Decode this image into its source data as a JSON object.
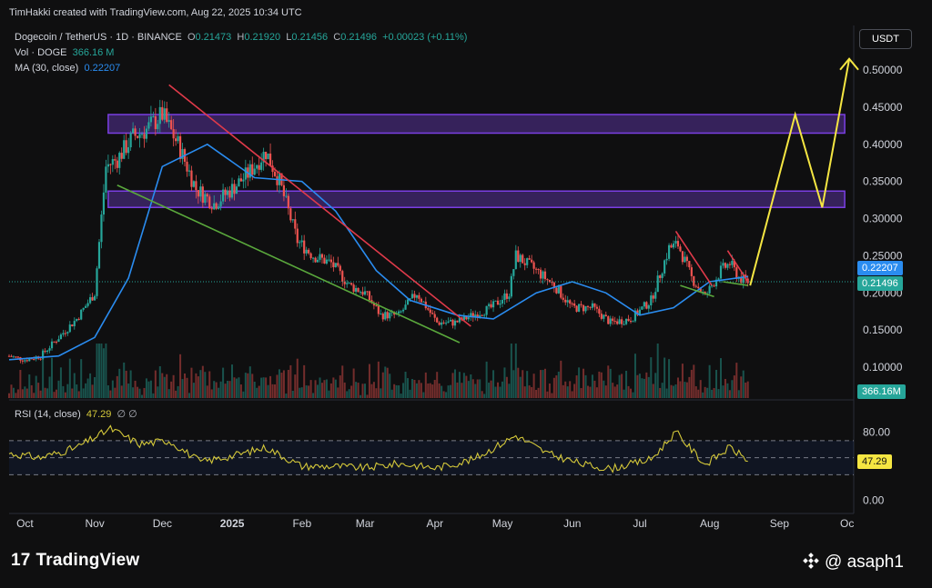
{
  "credit": "TimHakki created with TradingView.com, Aug 22, 2025 10:34 UTC",
  "symbol": {
    "name": "Dogecoin / TetherUS · 1D · BINANCE",
    "o_label": "O",
    "o": "0.21473",
    "h_label": "H",
    "h": "0.21920",
    "l_label": "L",
    "l": "0.21456",
    "c_label": "C",
    "c": "0.21496",
    "change": "+0.00023 (+0.11%)"
  },
  "vol": {
    "label": "Vol · DOGE",
    "value": "366.16 M"
  },
  "ma": {
    "label": "MA (30, close)",
    "value": "0.22207"
  },
  "currency": "USDT",
  "badges": {
    "ma": "0.22207",
    "price": "0.21496",
    "volume": "366.16M",
    "rsi": "47.29"
  },
  "rsi_header": {
    "label": "RSI (14, close)",
    "value": "47.29",
    "icons": "∅  ∅"
  },
  "footer": {
    "brand": "TradingView",
    "watermark": "@ asaph1"
  },
  "colors": {
    "background": "#0f0f10",
    "up": "#26a69a",
    "down": "#ef5350",
    "ma": "#2a8cf0",
    "zone": "#7b3fe4",
    "rsi": "#d4c83a",
    "projection": "#f5e642",
    "falling_resistance": "#e03a4a",
    "falling_support": "#5aa83c"
  },
  "chart_data": [
    {
      "type": "candlestick",
      "title": "Dogecoin / TetherUS · 1D · BINANCE",
      "x_ticks": [
        "Oct",
        "Nov",
        "Dec",
        "2025",
        "Feb",
        "Mar",
        "Apr",
        "May",
        "Jun",
        "Jul",
        "Aug",
        "Sep",
        "Oc"
      ],
      "y_ticks": [
        "0.50000",
        "0.45000",
        "0.40000",
        "0.35000",
        "0.30000",
        "0.25000",
        "0.20000",
        "0.15000",
        "0.10000"
      ],
      "ylim": [
        0.075,
        0.53
      ],
      "date_range": [
        "2024-09-28",
        "2025-10-08"
      ],
      "close_path": [
        [
          "2024-09-28",
          0.115
        ],
        [
          "2024-10-05",
          0.11
        ],
        [
          "2024-10-12",
          0.115
        ],
        [
          "2024-10-20",
          0.14
        ],
        [
          "2024-10-28",
          0.165
        ],
        [
          "2024-11-05",
          0.2
        ],
        [
          "2024-11-10",
          0.37
        ],
        [
          "2024-11-15",
          0.38
        ],
        [
          "2024-11-22",
          0.41
        ],
        [
          "2024-11-28",
          0.42
        ],
        [
          "2024-12-05",
          0.44
        ],
        [
          "2024-12-12",
          0.4
        ],
        [
          "2024-12-20",
          0.34
        ],
        [
          "2024-12-28",
          0.32
        ],
        [
          "2025-01-05",
          0.34
        ],
        [
          "2025-01-12",
          0.36
        ],
        [
          "2025-01-20",
          0.39
        ],
        [
          "2025-01-26",
          0.35
        ],
        [
          "2025-02-03",
          0.27
        ],
        [
          "2025-02-10",
          0.25
        ],
        [
          "2025-02-18",
          0.24
        ],
        [
          "2025-02-26",
          0.21
        ],
        [
          "2025-03-05",
          0.2
        ],
        [
          "2025-03-12",
          0.17
        ],
        [
          "2025-03-20",
          0.17
        ],
        [
          "2025-03-28",
          0.2
        ],
        [
          "2025-04-06",
          0.16
        ],
        [
          "2025-04-14",
          0.16
        ],
        [
          "2025-04-22",
          0.17
        ],
        [
          "2025-04-30",
          0.18
        ],
        [
          "2025-05-08",
          0.2
        ],
        [
          "2025-05-11",
          0.25
        ],
        [
          "2025-05-20",
          0.23
        ],
        [
          "2025-05-28",
          0.21
        ],
        [
          "2025-06-05",
          0.18
        ],
        [
          "2025-06-14",
          0.18
        ],
        [
          "2025-06-22",
          0.16
        ],
        [
          "2025-07-01",
          0.165
        ],
        [
          "2025-07-10",
          0.19
        ],
        [
          "2025-07-18",
          0.26
        ],
        [
          "2025-07-22",
          0.265
        ],
        [
          "2025-07-28",
          0.22
        ],
        [
          "2025-08-03",
          0.195
        ],
        [
          "2025-08-10",
          0.23
        ],
        [
          "2025-08-14",
          0.24
        ],
        [
          "2025-08-18",
          0.22
        ],
        [
          "2025-08-22",
          0.215
        ]
      ],
      "ma30": [
        [
          "2024-09-28",
          0.11
        ],
        [
          "2024-10-20",
          0.115
        ],
        [
          "2024-11-05",
          0.14
        ],
        [
          "2024-11-20",
          0.22
        ],
        [
          "2024-12-05",
          0.37
        ],
        [
          "2024-12-25",
          0.4
        ],
        [
          "2025-01-15",
          0.355
        ],
        [
          "2025-02-05",
          0.35
        ],
        [
          "2025-02-20",
          0.31
        ],
        [
          "2025-03-10",
          0.23
        ],
        [
          "2025-03-25",
          0.19
        ],
        [
          "2025-04-15",
          0.17
        ],
        [
          "2025-05-01",
          0.165
        ],
        [
          "2025-05-20",
          0.2
        ],
        [
          "2025-06-05",
          0.215
        ],
        [
          "2025-06-20",
          0.2
        ],
        [
          "2025-07-05",
          0.17
        ],
        [
          "2025-07-20",
          0.18
        ],
        [
          "2025-08-05",
          0.215
        ],
        [
          "2025-08-22",
          0.222
        ]
      ],
      "zones": [
        {
          "from": "2024-11-11",
          "to": "2025-10-04",
          "low": 0.415,
          "high": 0.44
        },
        {
          "from": "2024-11-11",
          "to": "2025-10-04",
          "low": 0.315,
          "high": 0.337
        }
      ],
      "trendlines": [
        {
          "name": "falling resistance",
          "from": [
            "2024-12-08",
            0.48
          ],
          "to": [
            "2025-04-21",
            0.155
          ]
        },
        {
          "name": "falling support",
          "from": [
            "2024-11-15",
            0.345
          ],
          "to": [
            "2025-04-16",
            0.133
          ]
        },
        {
          "name": "wedge top 1",
          "from": [
            "2025-07-21",
            0.283
          ],
          "to": [
            "2025-08-06",
            0.21
          ]
        },
        {
          "name": "wedge bottom 1",
          "from": [
            "2025-07-23",
            0.21
          ],
          "to": [
            "2025-08-07",
            0.195
          ]
        },
        {
          "name": "wedge top 2",
          "from": [
            "2025-08-13",
            0.257
          ],
          "to": [
            "2025-08-22",
            0.215
          ]
        },
        {
          "name": "wedge bottom 2",
          "from": [
            "2025-08-11",
            0.215
          ],
          "to": [
            "2025-08-22",
            0.21
          ]
        }
      ],
      "projection": [
        [
          "2025-08-23",
          0.21
        ],
        [
          "2025-09-12",
          0.44
        ],
        [
          "2025-09-24",
          0.315
        ],
        [
          "2025-10-06",
          0.515
        ]
      ],
      "last": {
        "ma": 0.22207,
        "close": 0.21496
      }
    },
    {
      "type": "bar",
      "title": "Vol · DOGE",
      "last_value": "366.16M"
    },
    {
      "type": "line",
      "title": "RSI (14, close)",
      "y_ticks": [
        "80.00",
        "0.00"
      ],
      "ylim": [
        -5,
        100
      ],
      "bands": [
        70,
        50,
        30
      ],
      "points": [
        [
          "2024-09-28",
          55
        ],
        [
          "2024-10-12",
          50
        ],
        [
          "2024-10-28",
          62
        ],
        [
          "2024-11-12",
          84
        ],
        [
          "2024-11-25",
          66
        ],
        [
          "2024-12-08",
          70
        ],
        [
          "2024-12-22",
          45
        ],
        [
          "2025-01-05",
          52
        ],
        [
          "2025-01-20",
          62
        ],
        [
          "2025-02-05",
          40
        ],
        [
          "2025-02-20",
          40
        ],
        [
          "2025-03-05",
          38
        ],
        [
          "2025-03-20",
          43
        ],
        [
          "2025-04-06",
          38
        ],
        [
          "2025-04-22",
          48
        ],
        [
          "2025-05-11",
          76
        ],
        [
          "2025-05-25",
          55
        ],
        [
          "2025-06-10",
          42
        ],
        [
          "2025-06-22",
          37
        ],
        [
          "2025-07-10",
          48
        ],
        [
          "2025-07-21",
          80
        ],
        [
          "2025-08-03",
          42
        ],
        [
          "2025-08-14",
          62
        ],
        [
          "2025-08-22",
          47.29
        ]
      ]
    }
  ]
}
